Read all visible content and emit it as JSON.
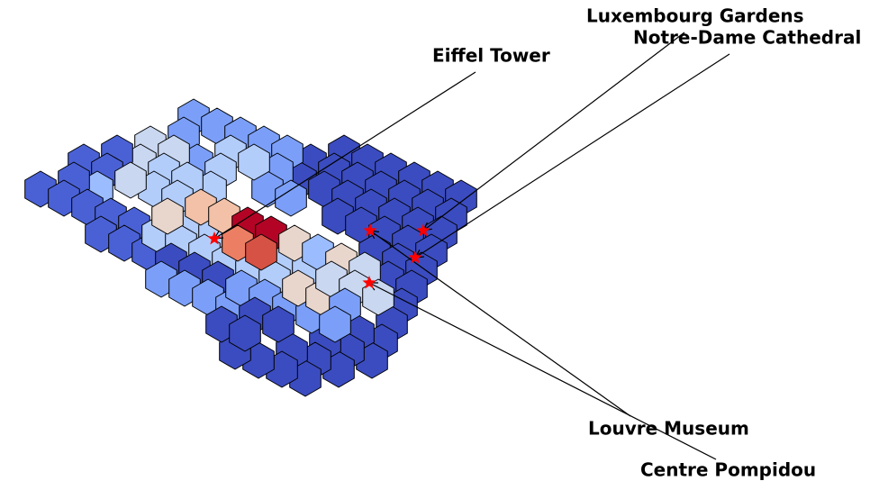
{
  "chart_data": {
    "type": "heatmap",
    "subtype": "hexbin map",
    "colormap": "coolwarm",
    "title": "",
    "xlabel": "",
    "ylabel": "",
    "axes_visible": false,
    "grid": false,
    "legend": "none",
    "colors": {
      "c1": "#3b4cc0",
      "c2": "#4a61d6",
      "c3": "#7b9ff9",
      "c4": "#9bbcff",
      "c5": "#b3cdfb",
      "c6": "#c9d7f0",
      "c7": "#e8d6cc",
      "c8": "#f2c1a8",
      "c9": "#ec7f63",
      "c10": "#d65244",
      "c11": "#b40426"
    },
    "landmarks": [
      {
        "name": "Eiffel Tower",
        "marker": "star"
      },
      {
        "name": "Luxembourg Gardens",
        "marker": "star"
      },
      {
        "name": "Notre-Dame Cathedral",
        "marker": "star"
      },
      {
        "name": "Louvre Museum",
        "marker": "star"
      },
      {
        "name": "Centre Pompidou",
        "marker": "star"
      }
    ]
  }
}
